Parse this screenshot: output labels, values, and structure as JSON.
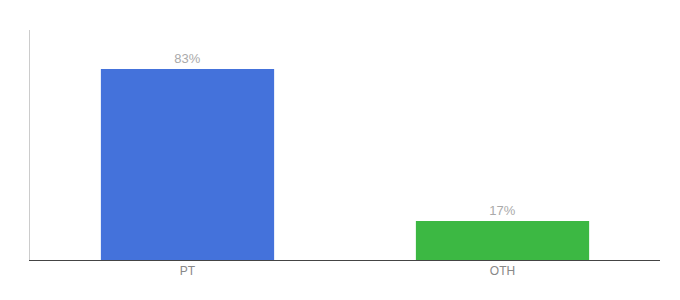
{
  "chart_data": {
    "type": "bar",
    "categories": [
      "PT",
      "OTH"
    ],
    "values": [
      83,
      17
    ],
    "value_labels": [
      "83%",
      "17%"
    ],
    "colors": [
      "#4472db",
      "#3cb843"
    ],
    "ylim": [
      0,
      100
    ],
    "data_labels": true,
    "tick_labels": "x",
    "grid": false
  }
}
